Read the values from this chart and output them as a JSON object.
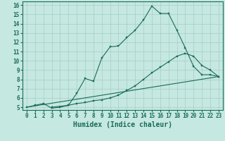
{
  "line1_x": [
    0,
    1,
    2,
    3,
    4,
    5,
    6,
    7,
    8,
    9,
    10,
    11,
    12,
    13,
    14,
    15,
    16,
    17,
    18,
    19,
    20,
    21,
    22,
    23
  ],
  "line1_y": [
    5.0,
    5.2,
    5.4,
    4.9,
    5.0,
    5.2,
    6.5,
    8.1,
    7.8,
    10.3,
    11.5,
    11.6,
    12.5,
    13.3,
    14.4,
    15.9,
    15.1,
    15.1,
    13.3,
    11.4,
    9.4,
    8.5,
    8.5,
    8.3
  ],
  "line2_x": [
    3,
    5,
    6,
    7,
    8,
    9,
    10,
    11,
    12,
    13,
    14,
    15,
    16,
    17,
    18,
    19,
    20,
    21,
    22,
    23
  ],
  "line2_y": [
    5.0,
    5.2,
    5.4,
    5.5,
    5.7,
    5.8,
    6.0,
    6.3,
    6.8,
    7.3,
    8.0,
    8.7,
    9.3,
    9.9,
    10.5,
    10.8,
    10.5,
    9.5,
    9.0,
    8.3
  ],
  "line3_x": [
    0,
    23
  ],
  "line3_y": [
    5.0,
    8.3
  ],
  "bg_color": "#c5e8e0",
  "grid_color": "#a8cdc5",
  "line_color": "#1a6b5a",
  "xlabel": "Humidex (Indice chaleur)",
  "xlim": [
    -0.5,
    23.5
  ],
  "ylim": [
    4.7,
    16.4
  ],
  "xticks": [
    0,
    1,
    2,
    3,
    4,
    5,
    6,
    7,
    8,
    9,
    10,
    11,
    12,
    13,
    14,
    15,
    16,
    17,
    18,
    19,
    20,
    21,
    22,
    23
  ],
  "yticks": [
    5,
    6,
    7,
    8,
    9,
    10,
    11,
    12,
    13,
    14,
    15,
    16
  ],
  "tick_fontsize": 5.5,
  "label_fontsize": 7.0
}
